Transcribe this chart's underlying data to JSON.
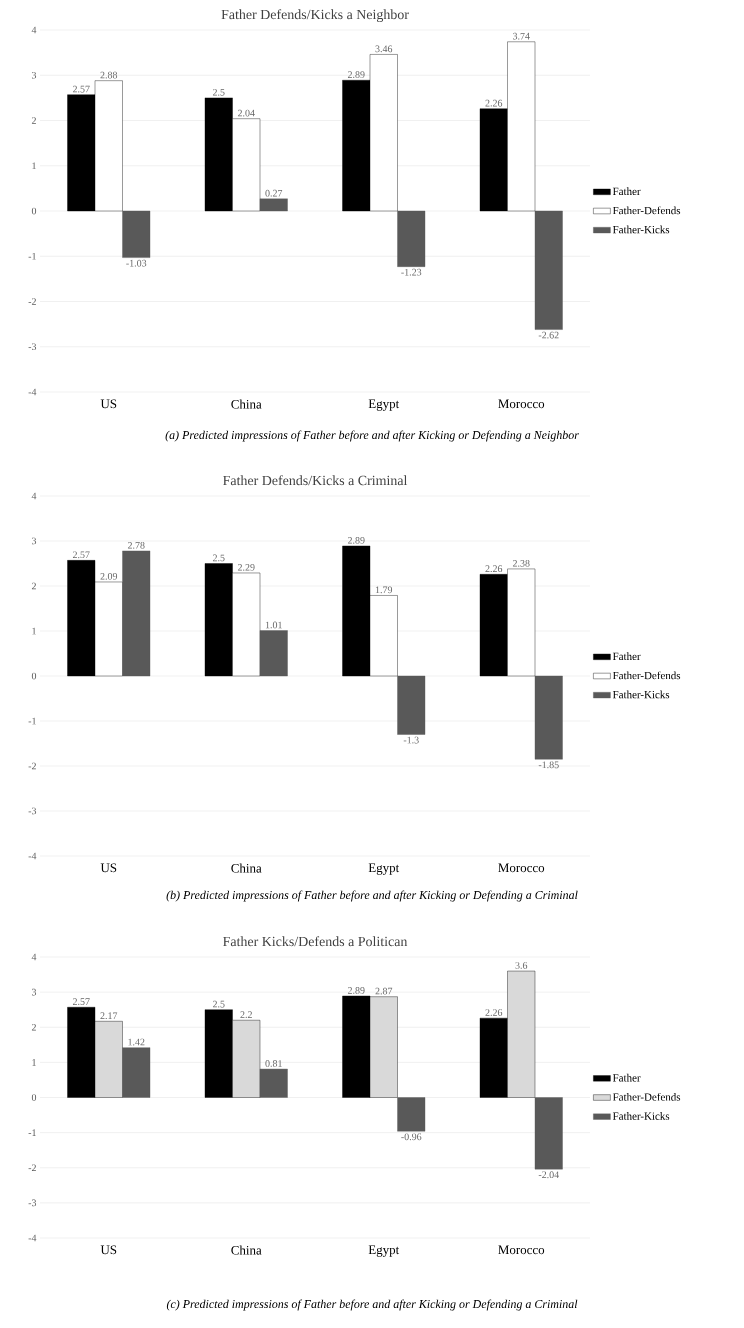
{
  "chart_data": [
    {
      "type": "bar",
      "title": "Father Defends/Kicks a Neighbor",
      "categories": [
        "US",
        "China",
        "Egypt",
        "Morocco"
      ],
      "series": [
        {
          "name": "Father",
          "color": "#000000",
          "values": [
            2.57,
            2.5,
            2.89,
            2.26
          ]
        },
        {
          "name": "Father-Defends",
          "color": "#ffffff",
          "values": [
            2.88,
            2.04,
            3.46,
            3.74
          ]
        },
        {
          "name": "Father-Kicks",
          "color": "#595959",
          "values": [
            -1.03,
            0.27,
            -1.23,
            -2.62
          ]
        }
      ],
      "ylim": [
        -4,
        4
      ],
      "yticks": [
        -4,
        -3,
        -2,
        -1,
        0,
        1,
        2,
        3,
        4
      ],
      "grid": "y",
      "legend": "right",
      "data_labels": true,
      "annotations": [
        "(a) Predicted impressions of Father before and after Kicking or Defending a Neighbor"
      ]
    },
    {
      "type": "bar",
      "title": "Father Defends/Kicks a Criminal",
      "categories": [
        "US",
        "China",
        "Egypt",
        "Morocco"
      ],
      "series": [
        {
          "name": "Father",
          "color": "#000000",
          "values": [
            2.57,
            2.5,
            2.89,
            2.26
          ]
        },
        {
          "name": "Father-Defends",
          "color": "#ffffff",
          "values": [
            2.09,
            2.29,
            1.79,
            2.38
          ]
        },
        {
          "name": "Father-Kicks",
          "color": "#595959",
          "values": [
            2.78,
            1.01,
            -1.3,
            -1.85
          ]
        }
      ],
      "ylim": [
        -4,
        4
      ],
      "yticks": [
        -4,
        -3,
        -2,
        -1,
        0,
        1,
        2,
        3,
        4
      ],
      "grid": "y",
      "legend": "right",
      "data_labels": true,
      "annotations": [
        "(b) Predicted impressions of Father before and after Kicking or Defending a Criminal"
      ]
    },
    {
      "type": "bar",
      "title": "Father Kicks/Defends a Politican",
      "categories": [
        "US",
        "China",
        "Egypt",
        "Morocco"
      ],
      "series": [
        {
          "name": "Father",
          "color": "#000000",
          "values": [
            2.57,
            2.5,
            2.89,
            2.26
          ]
        },
        {
          "name": "Father-Defends",
          "color": "#d9d9d9",
          "values": [
            2.17,
            2.2,
            2.87,
            3.6
          ]
        },
        {
          "name": "Father-Kicks",
          "color": "#595959",
          "values": [
            1.42,
            0.81,
            -0.96,
            -2.04
          ]
        }
      ],
      "ylim": [
        -4,
        4
      ],
      "yticks": [
        -4,
        -3,
        -2,
        -1,
        0,
        1,
        2,
        3,
        4
      ],
      "grid": "y",
      "legend": "right",
      "data_labels": true,
      "annotations": [
        "(c) Predicted impressions of Father before and after Kicking or Defending a Criminal"
      ]
    }
  ]
}
